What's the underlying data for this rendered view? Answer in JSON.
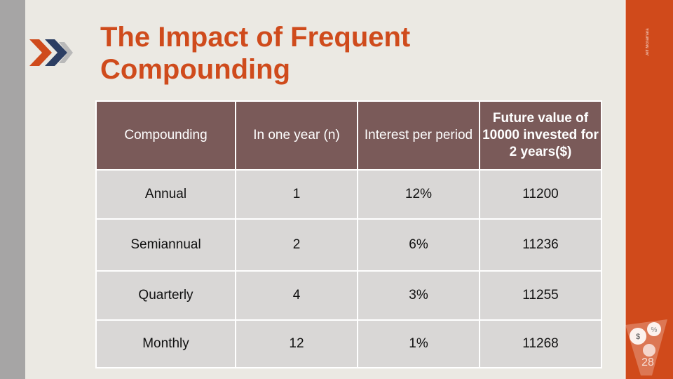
{
  "slide": {
    "title": "The Impact of Frequent Compounding",
    "side_label": "Jeff Mcnamara"
  },
  "table": {
    "headers": [
      "Compounding",
      "In one year (n)",
      "Interest per period",
      "Future value of 10000 invested for 2 years($)"
    ],
    "rows": [
      [
        "Annual",
        "1",
        "12%",
        "11200"
      ],
      [
        "Semiannual",
        "2",
        "6%",
        "11236"
      ],
      [
        "Quarterly",
        "4",
        "3%",
        "11255"
      ],
      [
        "Monthly",
        "12",
        "1%",
        "11268"
      ]
    ]
  },
  "colors": {
    "accent": "#cf4b1c",
    "header_bg": "#7a5a59",
    "cell_bg": "#d9d7d6",
    "background": "#ebe9e3"
  },
  "icons": [
    "chevron-double-icon",
    "currency-bubbles-icon"
  ],
  "logo": {
    "glyphs": [
      "$",
      "%",
      "28"
    ]
  }
}
